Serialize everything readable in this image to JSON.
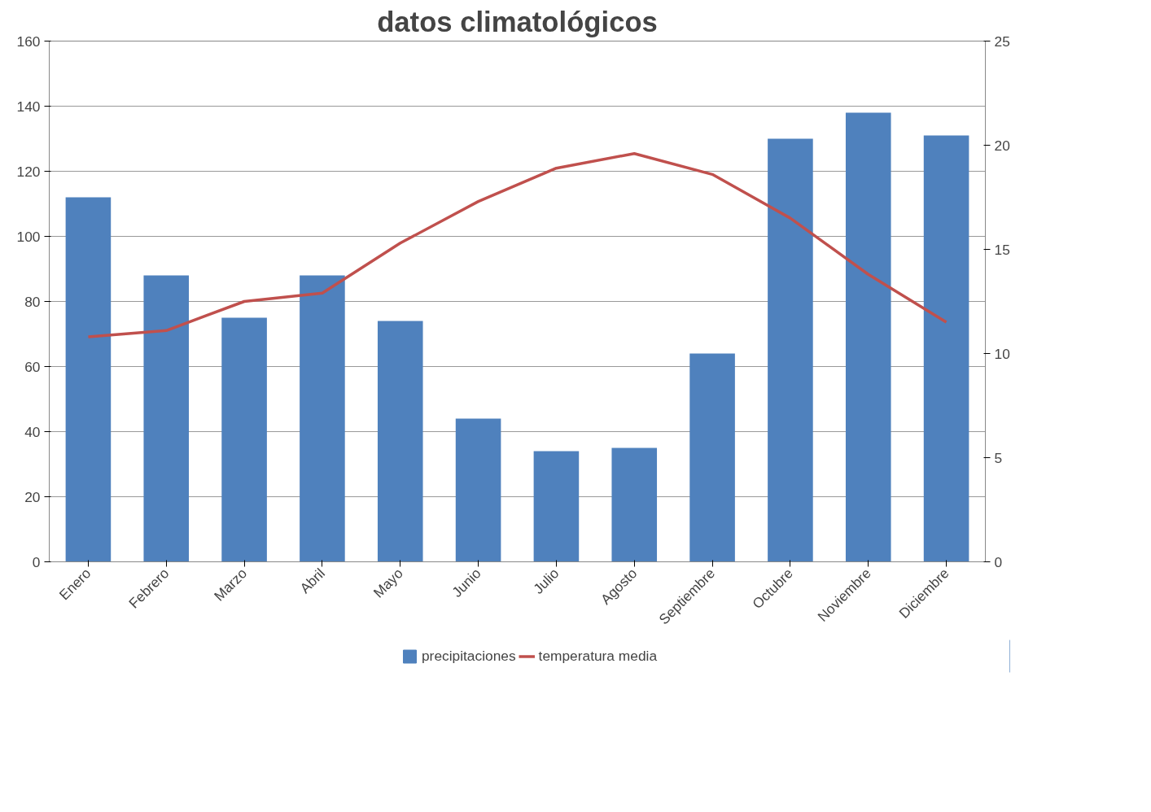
{
  "chart_data": {
    "type": "bar",
    "title": "datos climatológicos",
    "categories": [
      "Enero",
      "Febrero",
      "Marzo",
      "Abril",
      "Mayo",
      "Junio",
      "Julio",
      "Agosto",
      "Septiembre",
      "Octubre",
      "Noviembre",
      "Diciembre"
    ],
    "series": [
      {
        "name": "precipitaciones",
        "color": "#4f81bd",
        "values": [
          112,
          88,
          75,
          88,
          74,
          44,
          34,
          35,
          64,
          130,
          138,
          131
        ]
      },
      {
        "name": "temperatura media",
        "type": "line",
        "axis": "y2",
        "color": "#c0504d",
        "values": [
          10.8,
          11.1,
          12.5,
          12.9,
          15.3,
          17.3,
          18.9,
          19.6,
          18.6,
          16.5,
          13.8,
          11.5
        ]
      }
    ],
    "ylim": [
      0,
      160
    ],
    "yticks": [
      0,
      20,
      40,
      60,
      80,
      100,
      120,
      140,
      160
    ],
    "y2lim": [
      0,
      25
    ],
    "y2ticks": [
      0,
      5,
      10,
      15,
      20,
      25
    ],
    "grid": "y",
    "legend": "bottom",
    "marker": "none",
    "line_style": "solid"
  }
}
